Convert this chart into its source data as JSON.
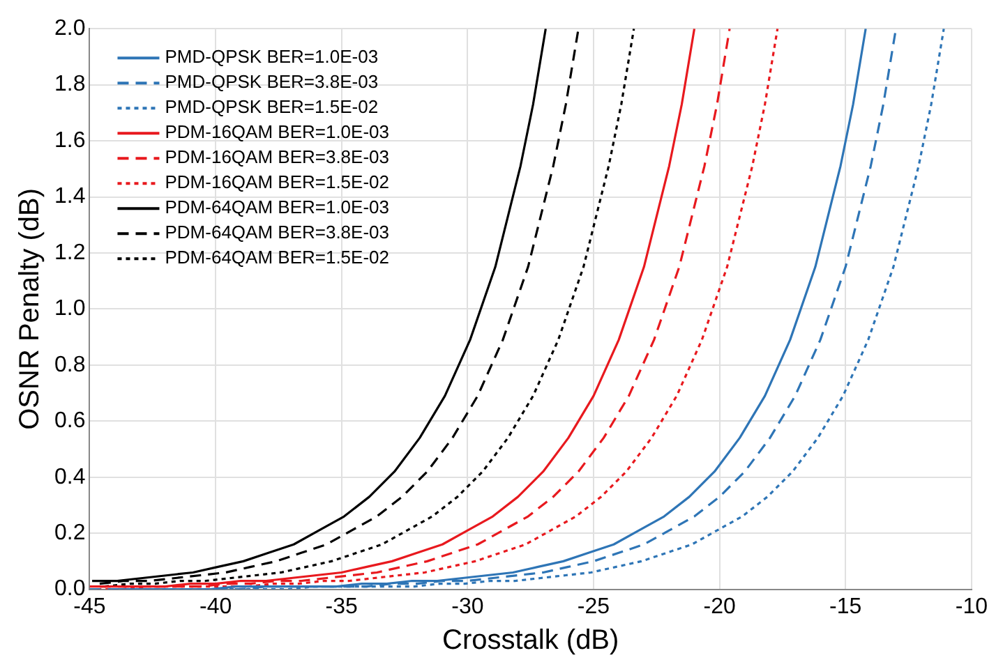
{
  "chart_data": {
    "type": "line",
    "xlabel": "Crosstalk (dB)",
    "ylabel": "OSNR Penalty (dB)",
    "xlim": [
      -45,
      -10
    ],
    "xticks": [
      -45,
      -40,
      -35,
      -30,
      -25,
      -20,
      -15,
      -10
    ],
    "ylim": [
      0,
      2
    ],
    "yticks": [
      {
        "value": 0,
        "label": "0.0"
      },
      {
        "value": 0.2,
        "label": "0.2"
      },
      {
        "value": 0.4,
        "label": "0.4"
      },
      {
        "value": 0.6,
        "label": "0.6"
      },
      {
        "value": 0.8,
        "label": "0.8"
      },
      {
        "value": 1,
        "label": "1.0"
      },
      {
        "value": 1.2,
        "label": "1.2"
      },
      {
        "value": 1.4,
        "label": "1.4"
      },
      {
        "value": 1.6,
        "label": "1.6"
      },
      {
        "value": 1.8,
        "label": "1.8"
      },
      {
        "value": 2,
        "label": "2.0"
      }
    ],
    "grid": true,
    "legend": "top left",
    "marker": "none",
    "series": [
      {
        "name": "PMD-QPSK BER=1.0E-03",
        "color": "#2e75b6",
        "line_style": "solid",
        "x": [
          -44.2,
          -43.2,
          -42.2,
          -41.2,
          -40.2,
          -39.2,
          -38.2,
          -37.2,
          -36.2,
          -35.2,
          -34.2,
          -33.2,
          -32.2,
          -31.2,
          -30.2,
          -29.2,
          -28.2,
          -27.2,
          -26.2,
          -25.2,
          -24.2,
          -23.2,
          -22.2,
          -21.2,
          -20.2,
          -19.2,
          -18.2,
          -17.2,
          -16.2,
          -15.2,
          -14.7,
          -14.2
        ],
        "values": [
          0,
          0,
          0,
          0,
          0,
          0.01,
          0.01,
          0.01,
          0.01,
          0.01,
          0.02,
          0.02,
          0.03,
          0.03,
          0.04,
          0.05,
          0.06,
          0.08,
          0.1,
          0.13,
          0.16,
          0.21,
          0.26,
          0.33,
          0.42,
          0.54,
          0.69,
          0.89,
          1.15,
          1.51,
          1.73,
          2
        ]
      },
      {
        "name": "PMD-QPSK BER=3.8E-03",
        "color": "#2e75b6",
        "line_style": "dashed",
        "x": [
          -45,
          -44,
          -43,
          -42,
          -41,
          -40,
          -39,
          -38,
          -37,
          -36,
          -35,
          -34,
          -33,
          -32,
          -31,
          -30,
          -29,
          -28,
          -27,
          -26,
          -25,
          -24,
          -23,
          -22,
          -21,
          -20,
          -19,
          -18,
          -17,
          -16,
          -15,
          -14,
          -13.5,
          -13
        ],
        "values": [
          0,
          0,
          0,
          0,
          0,
          0,
          0,
          0.01,
          0.01,
          0.01,
          0.01,
          0.01,
          0.02,
          0.02,
          0.03,
          0.03,
          0.04,
          0.05,
          0.06,
          0.08,
          0.1,
          0.13,
          0.16,
          0.21,
          0.26,
          0.33,
          0.42,
          0.54,
          0.69,
          0.89,
          1.15,
          1.51,
          1.73,
          2
        ]
      },
      {
        "name": "PMD-QPSK BER=1.5E-02",
        "color": "#2e75b6",
        "line_style": "dotted",
        "x": [
          -44.1,
          -43.1,
          -42.1,
          -41.1,
          -40.1,
          -39.1,
          -38.1,
          -37.1,
          -36.1,
          -35.1,
          -34.1,
          -33.1,
          -32.1,
          -31.1,
          -30.1,
          -29.1,
          -28.1,
          -27.1,
          -26.1,
          -25.1,
          -24.1,
          -23.1,
          -22.1,
          -21.1,
          -20.1,
          -19.1,
          -18.1,
          -17.1,
          -16.1,
          -15.1,
          -14.1,
          -13.1,
          -12.1,
          -11.6,
          -11.1
        ],
        "values": [
          0,
          0,
          0,
          0,
          0,
          0,
          0,
          0,
          0.01,
          0.01,
          0.01,
          0.01,
          0.01,
          0.02,
          0.02,
          0.03,
          0.03,
          0.04,
          0.05,
          0.06,
          0.08,
          0.1,
          0.13,
          0.16,
          0.21,
          0.26,
          0.33,
          0.42,
          0.54,
          0.69,
          0.89,
          1.15,
          1.51,
          1.73,
          2
        ]
      },
      {
        "name": "PDM-16QAM BER=1.0E-03",
        "color": "#e8191e",
        "line_style": "solid",
        "x": [
          -45,
          -44,
          -43,
          -42,
          -41,
          -40,
          -39,
          -38,
          -37,
          -36,
          -35,
          -34,
          -33,
          -32,
          -31,
          -30,
          -29,
          -28,
          -27,
          -26,
          -25,
          -24,
          -23,
          -22,
          -21.5,
          -21
        ],
        "values": [
          0.01,
          0.01,
          0.01,
          0.01,
          0.02,
          0.02,
          0.03,
          0.03,
          0.04,
          0.05,
          0.06,
          0.08,
          0.1,
          0.13,
          0.16,
          0.21,
          0.26,
          0.33,
          0.42,
          0.54,
          0.69,
          0.89,
          1.15,
          1.51,
          1.73,
          2
        ]
      },
      {
        "name": "PDM-16QAM BER=3.8E-03",
        "color": "#e8191e",
        "line_style": "dashed",
        "x": [
          -44.6,
          -43.6,
          -42.6,
          -41.6,
          -40.6,
          -39.6,
          -38.6,
          -37.6,
          -36.6,
          -35.6,
          -34.6,
          -33.6,
          -32.6,
          -31.6,
          -30.6,
          -29.6,
          -28.6,
          -27.6,
          -26.6,
          -25.6,
          -24.6,
          -23.6,
          -22.6,
          -21.6,
          -20.6,
          -20.1,
          -19.6
        ],
        "values": [
          0.01,
          0.01,
          0.01,
          0.01,
          0.01,
          0.02,
          0.02,
          0.03,
          0.03,
          0.04,
          0.05,
          0.06,
          0.08,
          0.1,
          0.13,
          0.16,
          0.21,
          0.26,
          0.33,
          0.42,
          0.54,
          0.69,
          0.89,
          1.15,
          1.51,
          1.73,
          2
        ]
      },
      {
        "name": "PDM-16QAM BER=1.5E-02",
        "color": "#e8191e",
        "line_style": "dotted",
        "x": [
          -44.7,
          -43.7,
          -42.7,
          -41.7,
          -40.7,
          -39.7,
          -38.7,
          -37.7,
          -36.7,
          -35.7,
          -34.7,
          -33.7,
          -32.7,
          -31.7,
          -30.7,
          -29.7,
          -28.7,
          -27.7,
          -26.7,
          -25.7,
          -24.7,
          -23.7,
          -22.7,
          -21.7,
          -20.7,
          -19.7,
          -18.7,
          -18.2,
          -17.7
        ],
        "values": [
          0,
          0,
          0.01,
          0.01,
          0.01,
          0.01,
          0.01,
          0.02,
          0.02,
          0.03,
          0.03,
          0.04,
          0.05,
          0.06,
          0.08,
          0.1,
          0.13,
          0.16,
          0.21,
          0.26,
          0.33,
          0.42,
          0.54,
          0.69,
          0.89,
          1.15,
          1.51,
          1.73,
          2
        ]
      },
      {
        "name": "PDM-64QAM BER=1.0E-03",
        "color": "#000000",
        "line_style": "solid",
        "x": [
          -44.9,
          -43.9,
          -42.9,
          -41.9,
          -40.9,
          -39.9,
          -38.9,
          -37.9,
          -36.9,
          -35.9,
          -34.9,
          -33.9,
          -32.9,
          -31.9,
          -30.9,
          -29.9,
          -28.9,
          -27.9,
          -27.4,
          -26.9
        ],
        "values": [
          0.03,
          0.03,
          0.04,
          0.05,
          0.06,
          0.08,
          0.1,
          0.13,
          0.16,
          0.21,
          0.26,
          0.33,
          0.42,
          0.54,
          0.69,
          0.89,
          1.15,
          1.51,
          1.73,
          2
        ]
      },
      {
        "name": "PDM-64QAM BER=3.8E-03",
        "color": "#000000",
        "line_style": "dashed",
        "x": [
          -44.6,
          -43.6,
          -42.6,
          -41.6,
          -40.6,
          -39.6,
          -38.6,
          -37.6,
          -36.6,
          -35.6,
          -34.6,
          -33.6,
          -32.6,
          -31.6,
          -30.6,
          -29.6,
          -28.6,
          -27.6,
          -26.6,
          -26.1,
          -25.6
        ],
        "values": [
          0.02,
          0.03,
          0.03,
          0.04,
          0.05,
          0.06,
          0.08,
          0.1,
          0.13,
          0.16,
          0.21,
          0.26,
          0.33,
          0.42,
          0.54,
          0.69,
          0.89,
          1.15,
          1.51,
          1.73,
          2
        ]
      },
      {
        "name": "PDM-64QAM BER=1.5E-02",
        "color": "#000000",
        "line_style": "dotted",
        "x": [
          -44.4,
          -43.4,
          -42.4,
          -41.4,
          -40.4,
          -39.4,
          -38.4,
          -37.4,
          -36.4,
          -35.4,
          -34.4,
          -33.4,
          -32.4,
          -31.4,
          -30.4,
          -29.4,
          -28.4,
          -27.4,
          -26.4,
          -25.4,
          -24.4,
          -23.9,
          -23.4
        ],
        "values": [
          0.01,
          0.02,
          0.02,
          0.03,
          0.03,
          0.04,
          0.05,
          0.06,
          0.08,
          0.1,
          0.13,
          0.16,
          0.21,
          0.26,
          0.33,
          0.42,
          0.54,
          0.69,
          0.89,
          1.15,
          1.51,
          1.73,
          2
        ]
      }
    ]
  }
}
